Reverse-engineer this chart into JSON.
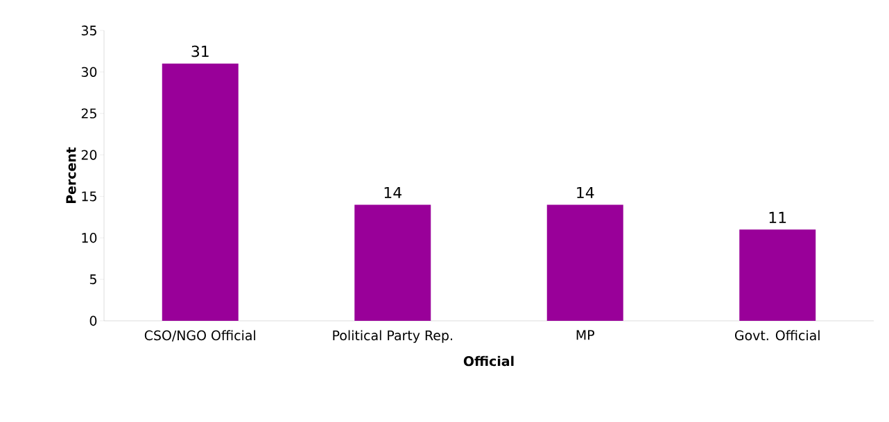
{
  "chart_data": {
    "type": "bar",
    "xlabel": "Official",
    "ylabel": "Percent",
    "categories": [
      "CSO/NGO  Official",
      "Political Party Rep.",
      "MP",
      "Govt. Official"
    ],
    "values": [
      31,
      14,
      14,
      11
    ],
    "color": "#990099",
    "ylim": [
      0,
      35
    ],
    "yticks": [
      0,
      5,
      10,
      15,
      20,
      25,
      30,
      35
    ],
    "data_labels": true,
    "grid": false
  }
}
